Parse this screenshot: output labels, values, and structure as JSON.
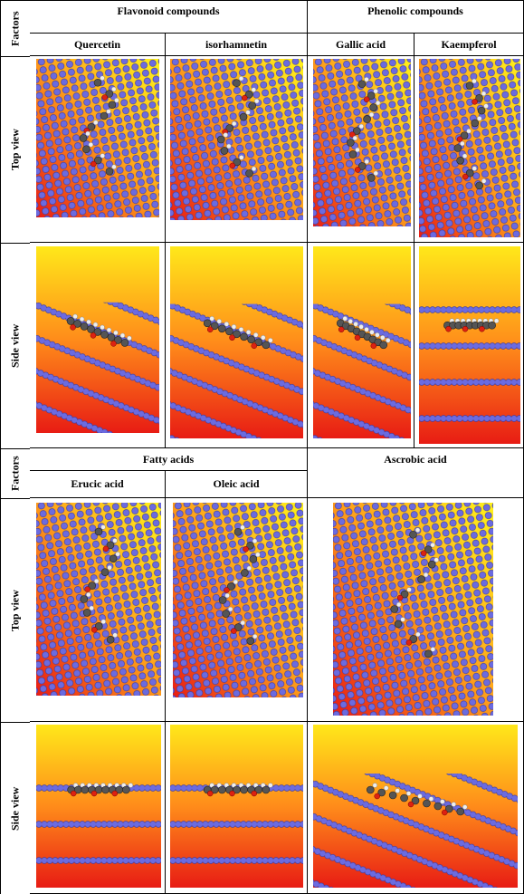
{
  "tables": [
    {
      "header_label": "Factors",
      "groups": [
        {
          "title": "Flavonoid compounds",
          "compounds": [
            "Quercetin",
            "isorhamnetin"
          ]
        },
        {
          "title": "Phenolic compounds",
          "compounds": [
            "Gallic acid",
            "Kaempferol"
          ]
        }
      ],
      "rows": [
        "Top view",
        "Side view"
      ]
    },
    {
      "header_label": "Factors",
      "groups": [
        {
          "title": "Fatty acids",
          "compounds": [
            "Erucic acid",
            "Oleic acid"
          ]
        },
        {
          "title": "Ascrobic acid"
        }
      ],
      "rows": [
        "Top view",
        "Side view"
      ]
    }
  ]
}
